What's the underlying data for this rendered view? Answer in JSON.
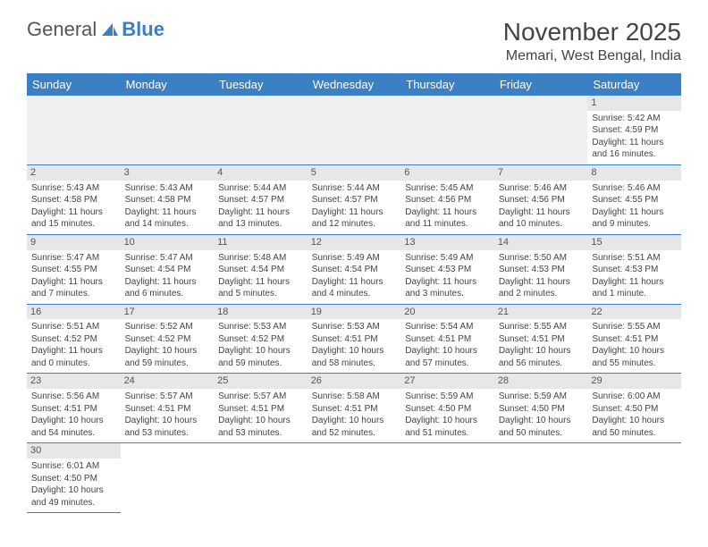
{
  "brand": {
    "part1": "General",
    "part2": "Blue"
  },
  "month_title": "November 2025",
  "location": "Memari, West Bengal, India",
  "colors": {
    "header_bg": "#3b7fc4",
    "daynum_bg": "#e7e7e7",
    "border": "#3b7fc4",
    "text": "#444444",
    "blank_bg": "#efefef"
  },
  "day_headers": [
    "Sunday",
    "Monday",
    "Tuesday",
    "Wednesday",
    "Thursday",
    "Friday",
    "Saturday"
  ],
  "weeks": [
    [
      null,
      null,
      null,
      null,
      null,
      null,
      {
        "n": "1",
        "sr": "Sunrise: 5:42 AM",
        "ss": "Sunset: 4:59 PM",
        "dl": "Daylight: 11 hours and 16 minutes."
      }
    ],
    [
      {
        "n": "2",
        "sr": "Sunrise: 5:43 AM",
        "ss": "Sunset: 4:58 PM",
        "dl": "Daylight: 11 hours and 15 minutes."
      },
      {
        "n": "3",
        "sr": "Sunrise: 5:43 AM",
        "ss": "Sunset: 4:58 PM",
        "dl": "Daylight: 11 hours and 14 minutes."
      },
      {
        "n": "4",
        "sr": "Sunrise: 5:44 AM",
        "ss": "Sunset: 4:57 PM",
        "dl": "Daylight: 11 hours and 13 minutes."
      },
      {
        "n": "5",
        "sr": "Sunrise: 5:44 AM",
        "ss": "Sunset: 4:57 PM",
        "dl": "Daylight: 11 hours and 12 minutes."
      },
      {
        "n": "6",
        "sr": "Sunrise: 5:45 AM",
        "ss": "Sunset: 4:56 PM",
        "dl": "Daylight: 11 hours and 11 minutes."
      },
      {
        "n": "7",
        "sr": "Sunrise: 5:46 AM",
        "ss": "Sunset: 4:56 PM",
        "dl": "Daylight: 11 hours and 10 minutes."
      },
      {
        "n": "8",
        "sr": "Sunrise: 5:46 AM",
        "ss": "Sunset: 4:55 PM",
        "dl": "Daylight: 11 hours and 9 minutes."
      }
    ],
    [
      {
        "n": "9",
        "sr": "Sunrise: 5:47 AM",
        "ss": "Sunset: 4:55 PM",
        "dl": "Daylight: 11 hours and 7 minutes."
      },
      {
        "n": "10",
        "sr": "Sunrise: 5:47 AM",
        "ss": "Sunset: 4:54 PM",
        "dl": "Daylight: 11 hours and 6 minutes."
      },
      {
        "n": "11",
        "sr": "Sunrise: 5:48 AM",
        "ss": "Sunset: 4:54 PM",
        "dl": "Daylight: 11 hours and 5 minutes."
      },
      {
        "n": "12",
        "sr": "Sunrise: 5:49 AM",
        "ss": "Sunset: 4:54 PM",
        "dl": "Daylight: 11 hours and 4 minutes."
      },
      {
        "n": "13",
        "sr": "Sunrise: 5:49 AM",
        "ss": "Sunset: 4:53 PM",
        "dl": "Daylight: 11 hours and 3 minutes."
      },
      {
        "n": "14",
        "sr": "Sunrise: 5:50 AM",
        "ss": "Sunset: 4:53 PM",
        "dl": "Daylight: 11 hours and 2 minutes."
      },
      {
        "n": "15",
        "sr": "Sunrise: 5:51 AM",
        "ss": "Sunset: 4:53 PM",
        "dl": "Daylight: 11 hours and 1 minute."
      }
    ],
    [
      {
        "n": "16",
        "sr": "Sunrise: 5:51 AM",
        "ss": "Sunset: 4:52 PM",
        "dl": "Daylight: 11 hours and 0 minutes."
      },
      {
        "n": "17",
        "sr": "Sunrise: 5:52 AM",
        "ss": "Sunset: 4:52 PM",
        "dl": "Daylight: 10 hours and 59 minutes."
      },
      {
        "n": "18",
        "sr": "Sunrise: 5:53 AM",
        "ss": "Sunset: 4:52 PM",
        "dl": "Daylight: 10 hours and 59 minutes."
      },
      {
        "n": "19",
        "sr": "Sunrise: 5:53 AM",
        "ss": "Sunset: 4:51 PM",
        "dl": "Daylight: 10 hours and 58 minutes."
      },
      {
        "n": "20",
        "sr": "Sunrise: 5:54 AM",
        "ss": "Sunset: 4:51 PM",
        "dl": "Daylight: 10 hours and 57 minutes."
      },
      {
        "n": "21",
        "sr": "Sunrise: 5:55 AM",
        "ss": "Sunset: 4:51 PM",
        "dl": "Daylight: 10 hours and 56 minutes."
      },
      {
        "n": "22",
        "sr": "Sunrise: 5:55 AM",
        "ss": "Sunset: 4:51 PM",
        "dl": "Daylight: 10 hours and 55 minutes."
      }
    ],
    [
      {
        "n": "23",
        "sr": "Sunrise: 5:56 AM",
        "ss": "Sunset: 4:51 PM",
        "dl": "Daylight: 10 hours and 54 minutes."
      },
      {
        "n": "24",
        "sr": "Sunrise: 5:57 AM",
        "ss": "Sunset: 4:51 PM",
        "dl": "Daylight: 10 hours and 53 minutes."
      },
      {
        "n": "25",
        "sr": "Sunrise: 5:57 AM",
        "ss": "Sunset: 4:51 PM",
        "dl": "Daylight: 10 hours and 53 minutes."
      },
      {
        "n": "26",
        "sr": "Sunrise: 5:58 AM",
        "ss": "Sunset: 4:51 PM",
        "dl": "Daylight: 10 hours and 52 minutes."
      },
      {
        "n": "27",
        "sr": "Sunrise: 5:59 AM",
        "ss": "Sunset: 4:50 PM",
        "dl": "Daylight: 10 hours and 51 minutes."
      },
      {
        "n": "28",
        "sr": "Sunrise: 5:59 AM",
        "ss": "Sunset: 4:50 PM",
        "dl": "Daylight: 10 hours and 50 minutes."
      },
      {
        "n": "29",
        "sr": "Sunrise: 6:00 AM",
        "ss": "Sunset: 4:50 PM",
        "dl": "Daylight: 10 hours and 50 minutes."
      }
    ],
    [
      {
        "n": "30",
        "sr": "Sunrise: 6:01 AM",
        "ss": "Sunset: 4:50 PM",
        "dl": "Daylight: 10 hours and 49 minutes."
      },
      null,
      null,
      null,
      null,
      null,
      null
    ]
  ]
}
